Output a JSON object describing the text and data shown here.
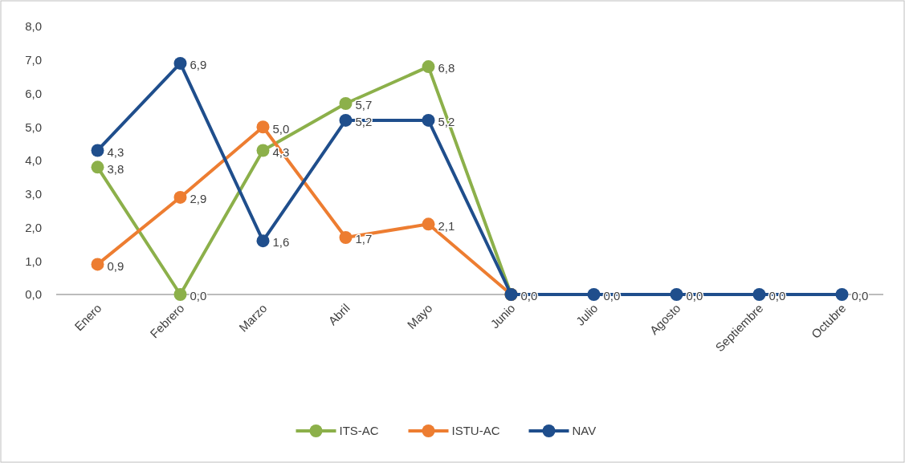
{
  "chart_data": {
    "type": "line",
    "categories": [
      "Enero",
      "Febrero",
      "Marzo",
      "Abril",
      "Mayo",
      "Junio",
      "Julio",
      "Agosto",
      "Septiembre",
      "Octubre"
    ],
    "series": [
      {
        "name": "ITS-AC",
        "color": "#8cb04a",
        "values": [
          3.8,
          0,
          4.3,
          5.7,
          6.8,
          0,
          null,
          null,
          null,
          null
        ],
        "value_labels": [
          "3,8",
          "0,0",
          "4,3",
          "5,7",
          "6,8",
          null,
          null,
          null,
          null,
          null
        ]
      },
      {
        "name": "ISTU-AC",
        "color": "#ed7d31",
        "values": [
          0.9,
          2.9,
          5.0,
          1.7,
          2.1,
          0,
          null,
          null,
          null,
          null
        ],
        "value_labels": [
          "0,9",
          "2,9",
          "5,0",
          "1,7",
          "2,1",
          null,
          null,
          null,
          null,
          null
        ]
      },
      {
        "name": "NAV",
        "color": "#1f4e8c",
        "values": [
          4.3,
          6.9,
          1.6,
          5.2,
          5.2,
          0,
          0,
          0,
          0,
          0
        ],
        "value_labels": [
          "4,3",
          "6,9",
          "1,6",
          "5,2",
          "5,2",
          "0,0",
          "0,0",
          "0,0",
          "0,0",
          "0,0"
        ]
      }
    ],
    "ylim": [
      0,
      8
    ],
    "yticks": [
      {
        "value": 0,
        "label": "0,0"
      },
      {
        "value": 1,
        "label": "1,0"
      },
      {
        "value": 2,
        "label": "2,0"
      },
      {
        "value": 3,
        "label": "3,0"
      },
      {
        "value": 4,
        "label": "4,0"
      },
      {
        "value": 5,
        "label": "5,0"
      },
      {
        "value": 6,
        "label": "6,0"
      },
      {
        "value": 7,
        "label": "7,0"
      },
      {
        "value": 8,
        "label": "8,0"
      }
    ],
    "grid": false,
    "legend": "bottom",
    "marker": "circle",
    "line_style": "solid"
  }
}
